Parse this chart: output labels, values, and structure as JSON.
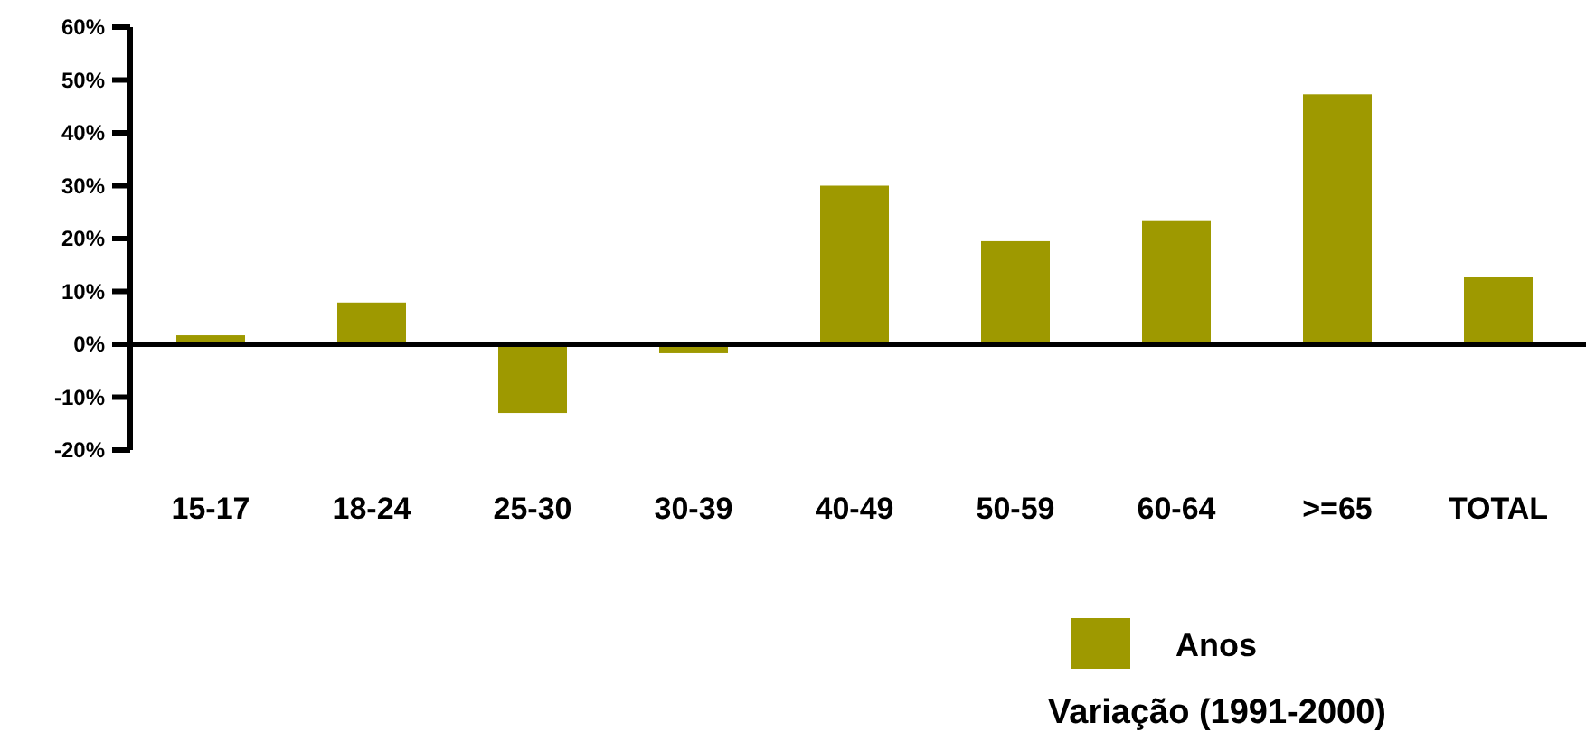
{
  "chart_data": {
    "type": "bar",
    "xlabel": "Variação (1991-2000)",
    "categories": [
      "15-17",
      "18-24",
      "25-30",
      "30-39",
      "40-49",
      "50-59",
      "60-64",
      ">=65",
      "TOTAL"
    ],
    "series": [
      {
        "name": "Anos",
        "color": "#9e9900",
        "values": [
          1.7,
          7.9,
          -13,
          -1.7,
          30,
          19.5,
          23.3,
          47.3,
          12.7
        ]
      }
    ],
    "ylim": [
      -20,
      60
    ],
    "yticks": [
      {
        "value": -20,
        "label": "-20%"
      },
      {
        "value": -10,
        "label": "-10%"
      },
      {
        "value": 0,
        "label": "0%"
      },
      {
        "value": 10,
        "label": "10%"
      },
      {
        "value": 20,
        "label": "20%"
      },
      {
        "value": 30,
        "label": "30%"
      },
      {
        "value": 40,
        "label": "40%"
      },
      {
        "value": 50,
        "label": "50%"
      },
      {
        "value": 60,
        "label": "60%"
      }
    ],
    "legend": "bottom right"
  }
}
